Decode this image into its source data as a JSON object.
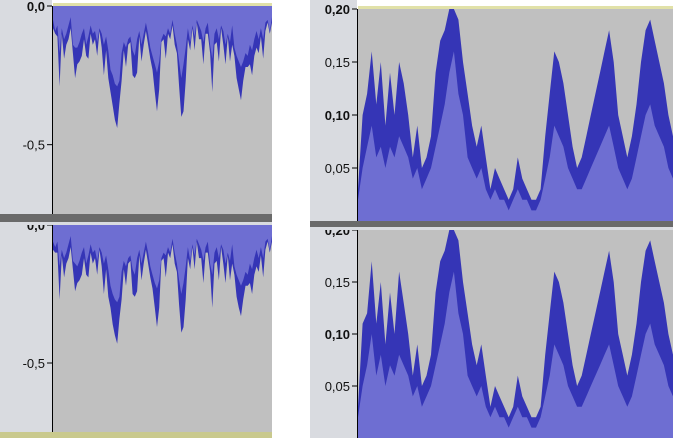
{
  "colors": {
    "ruler_bg": "#d9dbe0",
    "plot_bg": "#c0c0c0",
    "wave_fill": "#6e6ed2",
    "wave_peak": "#3535b6",
    "separator": "#6a6a6a",
    "top_accent": "#e1e1a8",
    "bottom_accent": "#c9c98d",
    "axis_line": "#000000"
  },
  "left_view": {
    "tracks": [
      {
        "name": "left-track-upper",
        "ticks": [
          {
            "label": "0,0",
            "value": 0.0,
            "bold": true
          },
          {
            "label": "-0,5",
            "value": -0.5,
            "bold": false
          }
        ],
        "wave": [
          0.05,
          0.09,
          0.07,
          0.17,
          0.08,
          0.12,
          0.1,
          0.07,
          0.04,
          0.14,
          0.15,
          0.15,
          0.13,
          0.1,
          0.08,
          0.14,
          0.11,
          0.07,
          0.1,
          0.09,
          0.13,
          0.08,
          0.1,
          0.14,
          0.11,
          0.16,
          0.23,
          0.25,
          0.28,
          0.29,
          0.27,
          0.17,
          0.13,
          0.15,
          0.12,
          0.11,
          0.16,
          0.18,
          0.12,
          0.09,
          0.14,
          0.1,
          0.06,
          0.1,
          0.15,
          0.18,
          0.21,
          0.24,
          0.2,
          0.12,
          0.1,
          0.11,
          0.08,
          0.1,
          0.05,
          0.1,
          0.14,
          0.2,
          0.26,
          0.21,
          0.15,
          0.08,
          0.13,
          0.07,
          0.11,
          0.05,
          0.07,
          0.09,
          0.13,
          0.08,
          0.06,
          0.14,
          0.19,
          0.1,
          0.08,
          0.12,
          0.07,
          0.09,
          0.14,
          0.1,
          0.13,
          0.07,
          0.15,
          0.18,
          0.2,
          0.22,
          0.2,
          0.17,
          0.18,
          0.14,
          0.16,
          0.12,
          0.09,
          0.12,
          0.08,
          0.12,
          0.06,
          0.05,
          0.09,
          0.04
        ],
        "peak": [
          0.08,
          0.1,
          0.11,
          0.29,
          0.1,
          0.19,
          0.14,
          0.12,
          0.08,
          0.17,
          0.26,
          0.21,
          0.2,
          0.18,
          0.12,
          0.18,
          0.19,
          0.1,
          0.14,
          0.12,
          0.18,
          0.09,
          0.15,
          0.25,
          0.16,
          0.26,
          0.31,
          0.36,
          0.41,
          0.44,
          0.35,
          0.27,
          0.16,
          0.22,
          0.14,
          0.13,
          0.25,
          0.26,
          0.24,
          0.11,
          0.2,
          0.14,
          0.09,
          0.14,
          0.19,
          0.23,
          0.31,
          0.38,
          0.3,
          0.13,
          0.12,
          0.19,
          0.1,
          0.12,
          0.07,
          0.14,
          0.17,
          0.29,
          0.4,
          0.38,
          0.27,
          0.12,
          0.16,
          0.08,
          0.16,
          0.06,
          0.12,
          0.12,
          0.21,
          0.1,
          0.1,
          0.17,
          0.31,
          0.14,
          0.13,
          0.2,
          0.08,
          0.14,
          0.21,
          0.11,
          0.2,
          0.14,
          0.18,
          0.26,
          0.3,
          0.34,
          0.27,
          0.22,
          0.22,
          0.21,
          0.25,
          0.18,
          0.15,
          0.17,
          0.11,
          0.19,
          0.09,
          0.06,
          0.1,
          0.06
        ]
      },
      {
        "name": "left-track-lower",
        "ticks": [
          {
            "label": "0,0",
            "value": 0.0,
            "bold": true
          },
          {
            "label": "-0,5",
            "value": -0.5,
            "bold": false
          }
        ],
        "wave": [
          0.06,
          0.08,
          0.06,
          0.15,
          0.09,
          0.12,
          0.1,
          0.07,
          0.04,
          0.13,
          0.14,
          0.15,
          0.13,
          0.1,
          0.08,
          0.14,
          0.11,
          0.07,
          0.1,
          0.09,
          0.13,
          0.08,
          0.1,
          0.14,
          0.11,
          0.16,
          0.22,
          0.25,
          0.27,
          0.28,
          0.26,
          0.17,
          0.13,
          0.15,
          0.12,
          0.11,
          0.16,
          0.18,
          0.12,
          0.09,
          0.14,
          0.1,
          0.06,
          0.1,
          0.15,
          0.18,
          0.21,
          0.23,
          0.2,
          0.12,
          0.1,
          0.11,
          0.08,
          0.1,
          0.05,
          0.1,
          0.14,
          0.2,
          0.25,
          0.21,
          0.15,
          0.08,
          0.13,
          0.07,
          0.11,
          0.05,
          0.07,
          0.09,
          0.13,
          0.08,
          0.06,
          0.14,
          0.18,
          0.1,
          0.08,
          0.12,
          0.07,
          0.09,
          0.14,
          0.1,
          0.13,
          0.07,
          0.15,
          0.18,
          0.2,
          0.22,
          0.2,
          0.17,
          0.18,
          0.14,
          0.16,
          0.12,
          0.09,
          0.12,
          0.08,
          0.12,
          0.06,
          0.05,
          0.09,
          0.04
        ],
        "peak": [
          0.09,
          0.1,
          0.1,
          0.27,
          0.11,
          0.19,
          0.14,
          0.12,
          0.08,
          0.16,
          0.24,
          0.21,
          0.2,
          0.18,
          0.12,
          0.18,
          0.19,
          0.1,
          0.14,
          0.12,
          0.18,
          0.09,
          0.15,
          0.25,
          0.16,
          0.26,
          0.3,
          0.36,
          0.4,
          0.43,
          0.34,
          0.27,
          0.16,
          0.22,
          0.14,
          0.13,
          0.25,
          0.26,
          0.24,
          0.11,
          0.2,
          0.14,
          0.09,
          0.14,
          0.19,
          0.23,
          0.3,
          0.37,
          0.3,
          0.13,
          0.12,
          0.19,
          0.1,
          0.12,
          0.07,
          0.14,
          0.17,
          0.29,
          0.39,
          0.37,
          0.27,
          0.12,
          0.16,
          0.08,
          0.16,
          0.06,
          0.12,
          0.12,
          0.21,
          0.1,
          0.1,
          0.17,
          0.3,
          0.14,
          0.13,
          0.2,
          0.08,
          0.14,
          0.21,
          0.11,
          0.2,
          0.14,
          0.18,
          0.26,
          0.3,
          0.33,
          0.27,
          0.22,
          0.22,
          0.21,
          0.25,
          0.18,
          0.15,
          0.17,
          0.11,
          0.19,
          0.09,
          0.06,
          0.1,
          0.06
        ]
      }
    ],
    "range": [
      -0.75,
      0.0
    ]
  },
  "right_view": {
    "tracks": [
      {
        "name": "right-track-upper",
        "ticks": [
          {
            "label": "0,20",
            "value": 0.2,
            "bold": true
          },
          {
            "label": "0,15",
            "value": 0.15,
            "bold": false
          },
          {
            "label": "0,10",
            "value": 0.1,
            "bold": true
          },
          {
            "label": "0,05",
            "value": 0.05,
            "bold": false
          }
        ],
        "wave": [
          0.02,
          0.05,
          0.07,
          0.09,
          0.06,
          0.07,
          0.05,
          0.07,
          0.06,
          0.08,
          0.07,
          0.06,
          0.04,
          0.05,
          0.03,
          0.04,
          0.05,
          0.07,
          0.09,
          0.11,
          0.14,
          0.16,
          0.12,
          0.1,
          0.06,
          0.05,
          0.04,
          0.05,
          0.03,
          0.02,
          0.03,
          0.02,
          0.02,
          0.01,
          0.02,
          0.03,
          0.02,
          0.02,
          0.01,
          0.01,
          0.02,
          0.04,
          0.06,
          0.09,
          0.08,
          0.07,
          0.05,
          0.04,
          0.03,
          0.03,
          0.04,
          0.05,
          0.06,
          0.07,
          0.08,
          0.09,
          0.07,
          0.05,
          0.04,
          0.03,
          0.04,
          0.06,
          0.08,
          0.1,
          0.11,
          0.09,
          0.08,
          0.07,
          0.05,
          0.04
        ],
        "peak": [
          0.03,
          0.1,
          0.12,
          0.16,
          0.11,
          0.15,
          0.09,
          0.14,
          0.1,
          0.15,
          0.13,
          0.1,
          0.06,
          0.09,
          0.05,
          0.06,
          0.08,
          0.14,
          0.17,
          0.18,
          0.2,
          0.2,
          0.19,
          0.15,
          0.12,
          0.09,
          0.07,
          0.09,
          0.06,
          0.03,
          0.05,
          0.04,
          0.03,
          0.02,
          0.03,
          0.06,
          0.04,
          0.03,
          0.02,
          0.02,
          0.03,
          0.08,
          0.12,
          0.16,
          0.15,
          0.13,
          0.1,
          0.07,
          0.05,
          0.06,
          0.08,
          0.1,
          0.12,
          0.14,
          0.16,
          0.18,
          0.15,
          0.1,
          0.08,
          0.06,
          0.08,
          0.11,
          0.15,
          0.18,
          0.19,
          0.17,
          0.15,
          0.13,
          0.1,
          0.08
        ]
      },
      {
        "name": "right-track-lower",
        "ticks": [
          {
            "label": "0,20",
            "value": 0.2,
            "bold": true
          },
          {
            "label": "0,15",
            "value": 0.15,
            "bold": false
          },
          {
            "label": "0,10",
            "value": 0.1,
            "bold": true
          },
          {
            "label": "0,05",
            "value": 0.05,
            "bold": false
          }
        ],
        "wave": [
          0.02,
          0.05,
          0.07,
          0.1,
          0.06,
          0.08,
          0.05,
          0.07,
          0.06,
          0.08,
          0.07,
          0.06,
          0.04,
          0.05,
          0.03,
          0.04,
          0.05,
          0.07,
          0.09,
          0.11,
          0.14,
          0.16,
          0.12,
          0.1,
          0.06,
          0.05,
          0.04,
          0.05,
          0.03,
          0.02,
          0.03,
          0.02,
          0.02,
          0.01,
          0.02,
          0.03,
          0.02,
          0.02,
          0.01,
          0.01,
          0.02,
          0.04,
          0.06,
          0.09,
          0.08,
          0.07,
          0.05,
          0.04,
          0.03,
          0.03,
          0.04,
          0.05,
          0.06,
          0.07,
          0.08,
          0.09,
          0.07,
          0.05,
          0.04,
          0.03,
          0.04,
          0.06,
          0.08,
          0.1,
          0.11,
          0.09,
          0.08,
          0.07,
          0.05,
          0.04
        ],
        "peak": [
          0.03,
          0.11,
          0.12,
          0.17,
          0.11,
          0.15,
          0.09,
          0.14,
          0.1,
          0.16,
          0.13,
          0.1,
          0.06,
          0.09,
          0.05,
          0.06,
          0.08,
          0.14,
          0.17,
          0.18,
          0.2,
          0.2,
          0.19,
          0.15,
          0.12,
          0.09,
          0.07,
          0.09,
          0.06,
          0.03,
          0.05,
          0.04,
          0.03,
          0.02,
          0.03,
          0.06,
          0.04,
          0.03,
          0.02,
          0.02,
          0.03,
          0.08,
          0.12,
          0.16,
          0.15,
          0.13,
          0.1,
          0.07,
          0.05,
          0.06,
          0.08,
          0.1,
          0.12,
          0.14,
          0.16,
          0.18,
          0.15,
          0.1,
          0.08,
          0.06,
          0.08,
          0.11,
          0.15,
          0.18,
          0.19,
          0.17,
          0.15,
          0.13,
          0.1,
          0.08
        ]
      }
    ],
    "range": [
      0.0,
      0.2
    ]
  }
}
